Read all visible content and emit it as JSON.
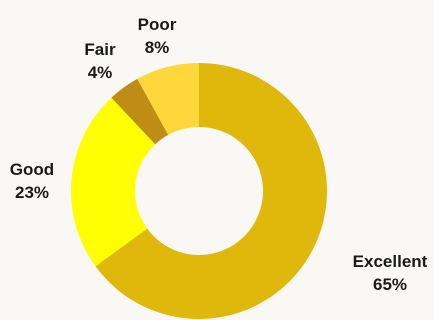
{
  "chart_data": {
    "type": "pie",
    "donut": true,
    "title": "",
    "start_angle_deg": 0,
    "direction": "clockwise",
    "series": [
      {
        "values": [
          {
            "label": "Excellent",
            "value": 65,
            "display": "65%",
            "color": "#e0b80b"
          },
          {
            "label": "Good",
            "value": 23,
            "display": "23%",
            "color": "#fffe03"
          },
          {
            "label": "Fair",
            "value": 4,
            "display": "4%",
            "color": "#bf8d13"
          },
          {
            "label": "Poor",
            "value": 8,
            "display": "8%",
            "color": "#fed73a"
          }
        ]
      }
    ],
    "legend": "none"
  }
}
